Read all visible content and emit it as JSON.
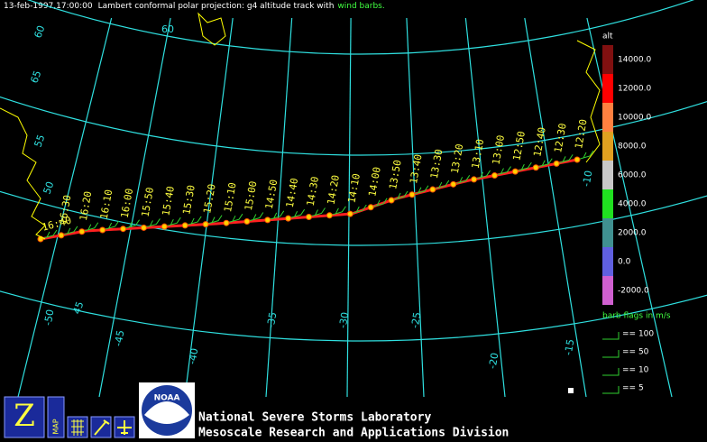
{
  "header": {
    "date": "13-feb-1997,17:00:00",
    "description": "Lambert conformal polar projection:  g4 altitude track with",
    "highlight": "wind barbs."
  },
  "latitude_labels": [
    "45",
    "50",
    "55",
    "60",
    "65"
  ],
  "top_label": "60",
  "longitude_labels": [
    "-50",
    "-45",
    "-40",
    "-35",
    "-30",
    "-25",
    "-20",
    "-15",
    "-10"
  ],
  "track_times": [
    "16:40",
    "16:30",
    "16:20",
    "16:10",
    "16:00",
    "15:50",
    "15:40",
    "15:30",
    "15:20",
    "15:10",
    "15:00",
    "14:50",
    "14:40",
    "14:30",
    "14:20",
    "14:10",
    "14:00",
    "13:50",
    "13:40",
    "13:30",
    "13:20",
    "13:10",
    "13:00",
    "12:50",
    "12:40",
    "12:30",
    "12:20"
  ],
  "altitude_legend": {
    "title": "alt",
    "ticks": [
      {
        "value": 14000,
        "label": "14000.0"
      },
      {
        "value": 12000,
        "label": "12000.0"
      },
      {
        "value": 10000,
        "label": "10000.0"
      },
      {
        "value": 8000,
        "label": "8000.0"
      },
      {
        "value": 6000,
        "label": "6000.0"
      },
      {
        "value": 4000,
        "label": "4000.0"
      },
      {
        "value": 2000,
        "label": "2000.0"
      },
      {
        "value": 0,
        "label": "0.0"
      },
      {
        "value": -2000,
        "label": "-2000.0"
      }
    ]
  },
  "barb_legend": {
    "title": "barb flags in m/s",
    "entries": [
      "== 100",
      "== 50",
      "== 10",
      "== 5"
    ]
  },
  "toolbar": {
    "zoom": "Z",
    "map": "MAP"
  },
  "logo": "NOAA",
  "footer": {
    "line1": "National Severe Storms Laboratory",
    "line2": "Mesoscale Research and Applications Division"
  }
}
